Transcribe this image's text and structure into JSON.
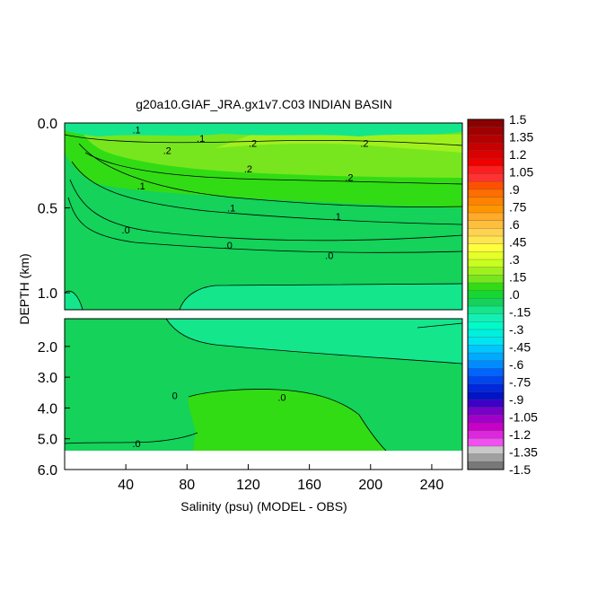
{
  "chart_data": {
    "type": "heatmap",
    "title": "g20a10.GIAF_JRA.gx1v7.C03 INDIAN BASIN",
    "xlabel": "Salinity (psu) (MODEL - OBS)",
    "ylabel": "DEPTH (km)",
    "x_ticks": [
      "40",
      "80",
      "120",
      "160",
      "200",
      "240"
    ],
    "x_tick_values": [
      40,
      80,
      120,
      160,
      200,
      240
    ],
    "xlim": [
      0,
      260
    ],
    "upper_panel": {
      "ylim": [
        0.0,
        1.1
      ],
      "y_ticks": [
        "0.0",
        "0.5",
        "1.0"
      ],
      "y_tick_values": [
        0.0,
        0.5,
        1.0
      ]
    },
    "lower_panel": {
      "ylim": [
        1.1,
        6.0
      ],
      "y_ticks": [
        "2.0",
        "3.0",
        "4.0",
        "5.0",
        "6.0"
      ],
      "y_tick_values": [
        2.0,
        3.0,
        4.0,
        5.0,
        6.0
      ],
      "bottom_missing_below": 5.35
    },
    "contour_labels": [
      {
        "panel": "upper",
        "text": ".2",
        "x": 67,
        "y": 0.16
      },
      {
        "panel": "upper",
        "text": ".2",
        "x": 123,
        "y": 0.12
      },
      {
        "panel": "upper",
        "text": ".2",
        "x": 120,
        "y": 0.27
      },
      {
        "panel": "upper",
        "text": ".2",
        "x": 186,
        "y": 0.32
      },
      {
        "panel": "upper",
        "text": ".2",
        "x": 196,
        "y": 0.12
      },
      {
        "panel": "upper",
        "text": ".1",
        "x": 47,
        "y": 0.04
      },
      {
        "panel": "upper",
        "text": ".1",
        "x": 89,
        "y": 0.09
      },
      {
        "panel": "upper",
        "text": ".1",
        "x": 50,
        "y": 0.37
      },
      {
        "panel": "upper",
        "text": ".1",
        "x": 109,
        "y": 0.5
      },
      {
        "panel": "upper",
        "text": ".1",
        "x": 178,
        "y": 0.55
      },
      {
        "panel": "upper",
        "text": ".0",
        "x": 40,
        "y": 0.63
      },
      {
        "panel": "upper",
        "text": ".0",
        "x": 107,
        "y": 0.72
      },
      {
        "panel": "upper",
        "text": ".0",
        "x": 173,
        "y": 0.78
      },
      {
        "panel": "lower",
        "text": "0",
        "x": 72,
        "y": 3.6
      },
      {
        "panel": "lower",
        "text": ".0",
        "x": 142,
        "y": 3.65
      },
      {
        "panel": "lower",
        "text": ".0",
        "x": 47,
        "y": 5.15
      }
    ],
    "colorbar": {
      "labels": [
        "1.5",
        "1.35",
        "1.2",
        "1.05",
        ".9",
        ".75",
        ".6",
        ".45",
        ".3",
        ".15",
        ".0",
        "-.15",
        "-.3",
        "-.45",
        "-.6",
        "-.75",
        "-.9",
        "-1.05",
        "-1.2",
        "-1.35",
        "-1.5"
      ],
      "values": [
        1.5,
        1.35,
        1.2,
        1.05,
        0.9,
        0.75,
        0.6,
        0.45,
        0.3,
        0.15,
        0.0,
        -0.15,
        -0.3,
        -0.45,
        -0.6,
        -0.75,
        -0.9,
        -1.05,
        -1.2,
        -1.35,
        -1.5
      ],
      "colors": [
        "#8c0000",
        "#a00000",
        "#b40000",
        "#c80000",
        "#dc0000",
        "#f00000",
        "#ff1e1e",
        "#ff3232",
        "#ff5000",
        "#ff6e00",
        "#ff8200",
        "#ff9600",
        "#ffaa28",
        "#ffbe3c",
        "#ffd250",
        "#ffe650",
        "#ffff3c",
        "#e6ff28",
        "#c8ff1e",
        "#a0f01e",
        "#78e61e",
        "#32dc14",
        "#14d732",
        "#14d25a",
        "#14e68c",
        "#14f0b4",
        "#00fac8",
        "#00f0dc",
        "#00e6f0",
        "#00c8ff",
        "#00aaff",
        "#008cff",
        "#0064ff",
        "#0046f0",
        "#0028dc",
        "#0014c8",
        "#3c00c8",
        "#7800c8",
        "#a000c8",
        "#c800c8",
        "#dc28dc",
        "#f050f0",
        "#c8c8c8",
        "#a0a0a0",
        "#787878"
      ]
    }
  }
}
